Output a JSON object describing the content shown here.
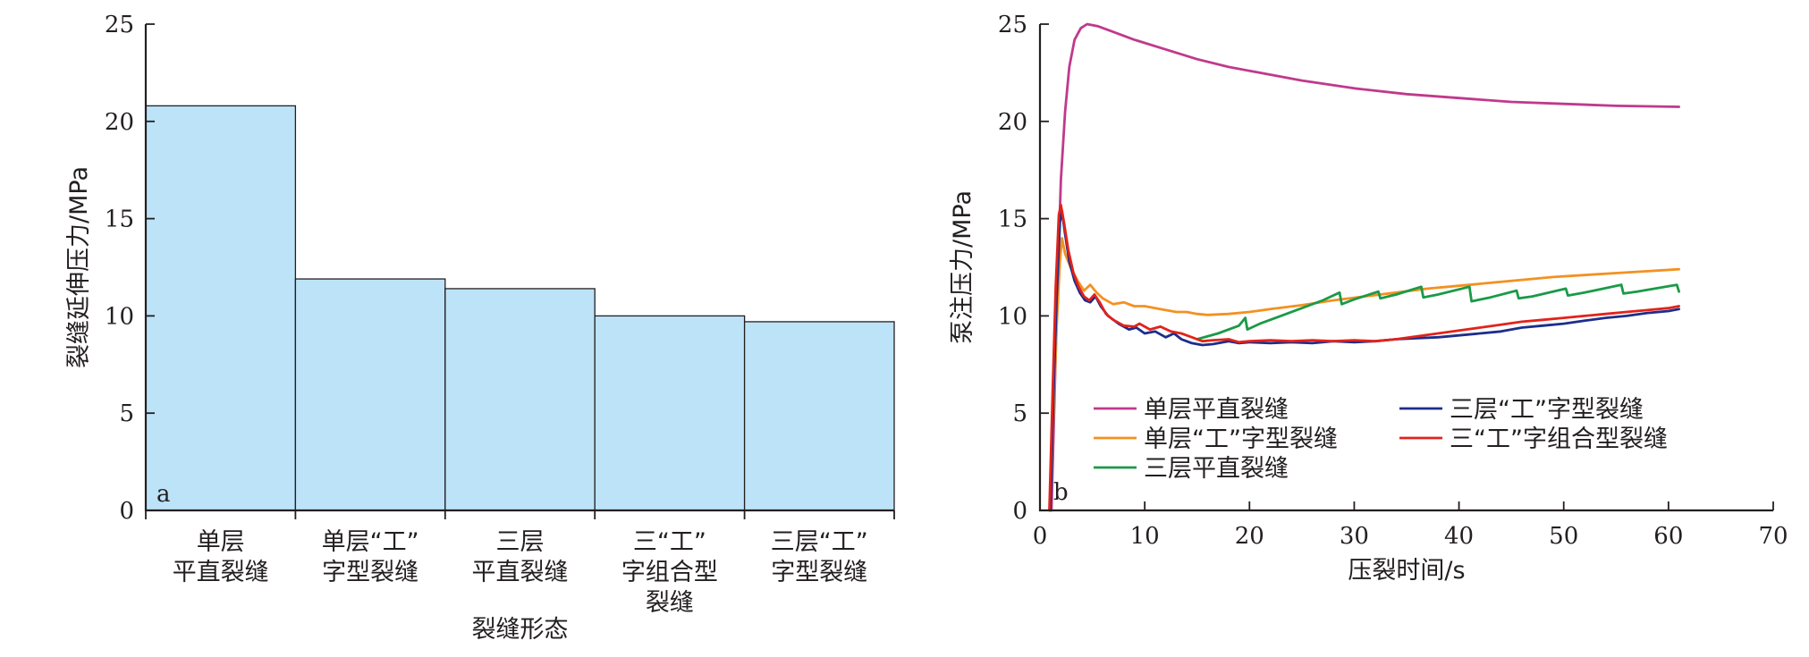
{
  "chart_data": [
    {
      "type": "bar",
      "panel_label": "a",
      "categories": [
        [
          "单层",
          "平直裂缝"
        ],
        [
          "单层“工”",
          "字型裂缝"
        ],
        [
          "三层",
          "平直裂缝"
        ],
        [
          "三“工”",
          "字组合型",
          "裂缝"
        ],
        [
          "三层“工”",
          "字型裂缝"
        ]
      ],
      "values": [
        20.8,
        11.9,
        11.4,
        10.0,
        9.7
      ],
      "xlabel": "裂缝形态",
      "ylabel": "裂缝延伸压力/MPa",
      "ylim": [
        0,
        25
      ],
      "yticks": [
        0,
        5,
        10,
        15,
        20,
        25
      ],
      "bar_color": "#bde3f8",
      "grid": false
    },
    {
      "type": "line",
      "panel_label": "b",
      "xlabel": "压裂时间/s",
      "ylabel": "泵注压力/MPa",
      "xlim": [
        0,
        70
      ],
      "ylim": [
        0,
        25
      ],
      "xticks": [
        0,
        10,
        20,
        30,
        40,
        50,
        60,
        70
      ],
      "yticks": [
        0,
        5,
        10,
        15,
        20,
        25
      ],
      "grid": false,
      "legend_position": "lower-center",
      "series": [
        {
          "name": "单层平直裂缝",
          "color": "#c0398c",
          "points": [
            [
              1.1,
              0
            ],
            [
              1.4,
              6
            ],
            [
              1.7,
              12
            ],
            [
              2.0,
              17
            ],
            [
              2.4,
              20.5
            ],
            [
              2.8,
              22.8
            ],
            [
              3.3,
              24.2
            ],
            [
              3.9,
              24.8
            ],
            [
              4.5,
              25.0
            ],
            [
              5.5,
              24.9
            ],
            [
              7,
              24.6
            ],
            [
              9,
              24.2
            ],
            [
              12,
              23.7
            ],
            [
              15,
              23.2
            ],
            [
              18,
              22.8
            ],
            [
              21,
              22.5
            ],
            [
              25,
              22.1
            ],
            [
              30,
              21.7
            ],
            [
              35,
              21.4
            ],
            [
              40,
              21.2
            ],
            [
              45,
              21.0
            ],
            [
              50,
              20.9
            ],
            [
              55,
              20.8
            ],
            [
              61,
              20.75
            ]
          ]
        },
        {
          "name": "单层“工”字型裂缝",
          "color": "#f39120",
          "points": [
            [
              1.0,
              0
            ],
            [
              1.3,
              5
            ],
            [
              1.6,
              9.5
            ],
            [
              1.9,
              12.8
            ],
            [
              2.1,
              14.0
            ],
            [
              2.4,
              13.2
            ],
            [
              3.0,
              12.4
            ],
            [
              3.6,
              11.8
            ],
            [
              4.2,
              11.3
            ],
            [
              4.8,
              11.6
            ],
            [
              5.4,
              11.2
            ],
            [
              6,
              10.9
            ],
            [
              7,
              10.6
            ],
            [
              8,
              10.7
            ],
            [
              9,
              10.5
            ],
            [
              10,
              10.5
            ],
            [
              11,
              10.4
            ],
            [
              12,
              10.3
            ],
            [
              13,
              10.2
            ],
            [
              14,
              10.2
            ],
            [
              15,
              10.1
            ],
            [
              16,
              10.05
            ],
            [
              18,
              10.1
            ],
            [
              20,
              10.2
            ],
            [
              22,
              10.35
            ],
            [
              25,
              10.55
            ],
            [
              28,
              10.8
            ],
            [
              31,
              11.0
            ],
            [
              34,
              11.2
            ],
            [
              37,
              11.4
            ],
            [
              40,
              11.55
            ],
            [
              43,
              11.7
            ],
            [
              46,
              11.85
            ],
            [
              49,
              12.0
            ],
            [
              52,
              12.1
            ],
            [
              55,
              12.2
            ],
            [
              58,
              12.3
            ],
            [
              61,
              12.4
            ]
          ]
        },
        {
          "name": "三层平直裂缝",
          "color": "#1a9a47",
          "points": [
            [
              15,
              8.8
            ],
            [
              17,
              9.1
            ],
            [
              19,
              9.5
            ],
            [
              19.6,
              9.9
            ],
            [
              19.8,
              9.3
            ],
            [
              21,
              9.6
            ],
            [
              23,
              10.0
            ],
            [
              25,
              10.4
            ],
            [
              27,
              10.8
            ],
            [
              28.6,
              11.2
            ],
            [
              28.8,
              10.6
            ],
            [
              30,
              10.85
            ],
            [
              32.3,
              11.25
            ],
            [
              32.5,
              10.9
            ],
            [
              34,
              11.1
            ],
            [
              36.4,
              11.5
            ],
            [
              36.6,
              10.95
            ],
            [
              38,
              11.1
            ],
            [
              41.0,
              11.5
            ],
            [
              41.2,
              10.75
            ],
            [
              43,
              10.95
            ],
            [
              45.5,
              11.3
            ],
            [
              45.7,
              10.9
            ],
            [
              47,
              11.0
            ],
            [
              50.2,
              11.4
            ],
            [
              50.4,
              11.05
            ],
            [
              52,
              11.2
            ],
            [
              55.5,
              11.6
            ],
            [
              55.7,
              11.15
            ],
            [
              57,
              11.25
            ],
            [
              60.8,
              11.6
            ],
            [
              61,
              11.25
            ]
          ]
        },
        {
          "name": "三层“工”字型裂缝",
          "color": "#1d2d8c",
          "points": [
            [
              1.0,
              0
            ],
            [
              1.3,
              6
            ],
            [
              1.6,
              11
            ],
            [
              1.9,
              14.8
            ],
            [
              2.1,
              15.4
            ],
            [
              2.4,
              14.2
            ],
            [
              2.8,
              12.8
            ],
            [
              3.3,
              11.8
            ],
            [
              3.8,
              11.2
            ],
            [
              4.3,
              10.8
            ],
            [
              4.8,
              10.7
            ],
            [
              5.3,
              11.0
            ],
            [
              5.8,
              10.5
            ],
            [
              6.5,
              10.0
            ],
            [
              7.5,
              9.6
            ],
            [
              8.5,
              9.3
            ],
            [
              9.2,
              9.4
            ],
            [
              10,
              9.1
            ],
            [
              11,
              9.2
            ],
            [
              12,
              8.9
            ],
            [
              12.8,
              9.1
            ],
            [
              13.5,
              8.8
            ],
            [
              14.5,
              8.6
            ],
            [
              15.5,
              8.5
            ],
            [
              16.5,
              8.55
            ],
            [
              18,
              8.7
            ],
            [
              19,
              8.6
            ],
            [
              20,
              8.65
            ],
            [
              22,
              8.6
            ],
            [
              24,
              8.65
            ],
            [
              26,
              8.6
            ],
            [
              28,
              8.7
            ],
            [
              30,
              8.65
            ],
            [
              32,
              8.7
            ],
            [
              34,
              8.8
            ],
            [
              36,
              8.85
            ],
            [
              38,
              8.9
            ],
            [
              40,
              9.0
            ],
            [
              42,
              9.1
            ],
            [
              44,
              9.2
            ],
            [
              46,
              9.4
            ],
            [
              48,
              9.5
            ],
            [
              50,
              9.6
            ],
            [
              52,
              9.75
            ],
            [
              54,
              9.9
            ],
            [
              56,
              10.0
            ],
            [
              58,
              10.15
            ],
            [
              60,
              10.25
            ],
            [
              61,
              10.35
            ]
          ]
        },
        {
          "name": "三“工”字组合型裂缝",
          "color": "#e2231a",
          "points": [
            [
              0.9,
              0
            ],
            [
              1.2,
              6
            ],
            [
              1.5,
              11.5
            ],
            [
              1.8,
              15.2
            ],
            [
              2.0,
              15.7
            ],
            [
              2.3,
              14.8
            ],
            [
              2.7,
              13.4
            ],
            [
              3.2,
              12.2
            ],
            [
              3.7,
              11.5
            ],
            [
              4.2,
              11.0
            ],
            [
              4.7,
              10.8
            ],
            [
              5.2,
              11.1
            ],
            [
              5.7,
              10.7
            ],
            [
              6.3,
              10.1
            ],
            [
              7,
              9.8
            ],
            [
              8,
              9.5
            ],
            [
              9,
              9.45
            ],
            [
              9.5,
              9.6
            ],
            [
              10.5,
              9.3
            ],
            [
              11.5,
              9.45
            ],
            [
              12.5,
              9.2
            ],
            [
              13.5,
              9.1
            ],
            [
              14.5,
              8.9
            ],
            [
              15.5,
              8.7
            ],
            [
              16.5,
              8.75
            ],
            [
              18,
              8.8
            ],
            [
              19,
              8.65
            ],
            [
              20,
              8.7
            ],
            [
              22,
              8.75
            ],
            [
              24,
              8.7
            ],
            [
              26,
              8.75
            ],
            [
              28,
              8.7
            ],
            [
              30,
              8.75
            ],
            [
              32,
              8.7
            ],
            [
              34,
              8.8
            ],
            [
              36,
              8.95
            ],
            [
              38,
              9.1
            ],
            [
              40,
              9.25
            ],
            [
              42,
              9.4
            ],
            [
              44,
              9.55
            ],
            [
              46,
              9.7
            ],
            [
              48,
              9.8
            ],
            [
              50,
              9.9
            ],
            [
              52,
              10.0
            ],
            [
              54,
              10.1
            ],
            [
              56,
              10.2
            ],
            [
              58,
              10.3
            ],
            [
              60,
              10.4
            ],
            [
              61,
              10.5
            ]
          ]
        }
      ]
    }
  ]
}
